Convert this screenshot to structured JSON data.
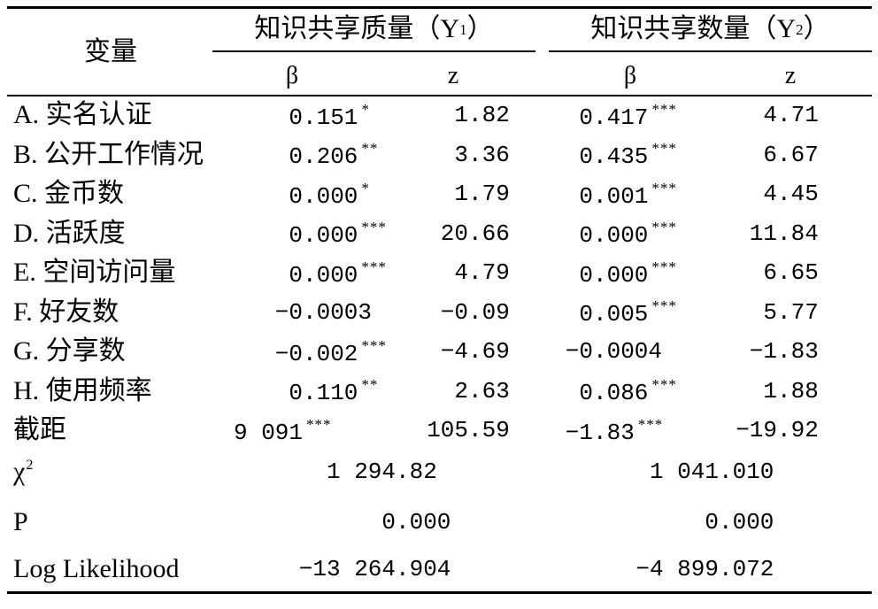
{
  "table": {
    "header": {
      "variable": "变量",
      "groups": [
        {
          "title": "知识共享质量（Y",
          "sub": "1",
          "close": "）"
        },
        {
          "title": "知识共享数量（Y",
          "sub": "2",
          "close": "）"
        }
      ],
      "subheaders": {
        "beta1": "β",
        "z1": "z",
        "beta2": "β",
        "z2": "z"
      }
    },
    "rows": [
      {
        "label": "A. 实名认证",
        "beta1": {
          "value": "0.151",
          "sig": "*"
        },
        "z1": {
          "value": "1.82"
        },
        "beta2": {
          "value": "0.417",
          "sig": "***"
        },
        "z2": {
          "value": "4.71"
        }
      },
      {
        "label": "B. 公开工作情况",
        "beta1": {
          "value": "0.206",
          "sig": "**"
        },
        "z1": {
          "value": "3.36"
        },
        "beta2": {
          "value": "0.435",
          "sig": "***"
        },
        "z2": {
          "value": "6.67"
        }
      },
      {
        "label": "C. 金币数",
        "beta1": {
          "value": "0.000",
          "sig": "*"
        },
        "z1": {
          "value": "1.79"
        },
        "beta2": {
          "value": "0.001",
          "sig": "***"
        },
        "z2": {
          "value": "4.45"
        }
      },
      {
        "label": "D. 活跃度",
        "beta1": {
          "value": "0.000",
          "sig": "***"
        },
        "z1": {
          "value": "20.66"
        },
        "beta2": {
          "value": "0.000",
          "sig": "***"
        },
        "z2": {
          "value": "11.84"
        }
      },
      {
        "label": "E. 空间访问量",
        "beta1": {
          "value": "0.000",
          "sig": "***"
        },
        "z1": {
          "value": "4.79"
        },
        "beta2": {
          "value": "0.000",
          "sig": "***"
        },
        "z2": {
          "value": "6.65"
        }
      },
      {
        "label": "F. 好友数",
        "beta1": {
          "value": "−0.0003"
        },
        "z1": {
          "value": "−0.09"
        },
        "beta2": {
          "value": "0.005",
          "sig": "***"
        },
        "z2": {
          "value": "5.77"
        }
      },
      {
        "label": "G. 分享数",
        "beta1": {
          "value": "−0.002",
          "sig": "***"
        },
        "z1": {
          "value": "−4.69"
        },
        "beta2": {
          "value": "−0.0004"
        },
        "z2": {
          "value": "−1.83"
        }
      },
      {
        "label": "H. 使用频率",
        "beta1": {
          "value": "0.110",
          "sig": "**"
        },
        "z1": {
          "value": "2.63"
        },
        "beta2": {
          "value": "0.086",
          "sig": "***"
        },
        "z2": {
          "value": "1.88"
        }
      },
      {
        "label": "截距",
        "beta1": {
          "value": "9 091",
          "sig": "***"
        },
        "z1": {
          "value": "105.59"
        },
        "beta2": {
          "value": "−1.83",
          "sig": "***"
        },
        "z2": {
          "value": "−19.92"
        }
      }
    ],
    "stats": [
      {
        "label": "χ",
        "label_sup": "2",
        "group1": {
          "value": "1 294.82"
        },
        "group2": {
          "value": "1 041.010"
        }
      },
      {
        "label": "P",
        "group1": {
          "value": "0.000"
        },
        "group2": {
          "value": "0.000"
        }
      },
      {
        "label": "Log Likelihood",
        "group1": {
          "value": "−13 264.904"
        },
        "group2": {
          "value": "−4 899.072"
        }
      }
    ]
  }
}
